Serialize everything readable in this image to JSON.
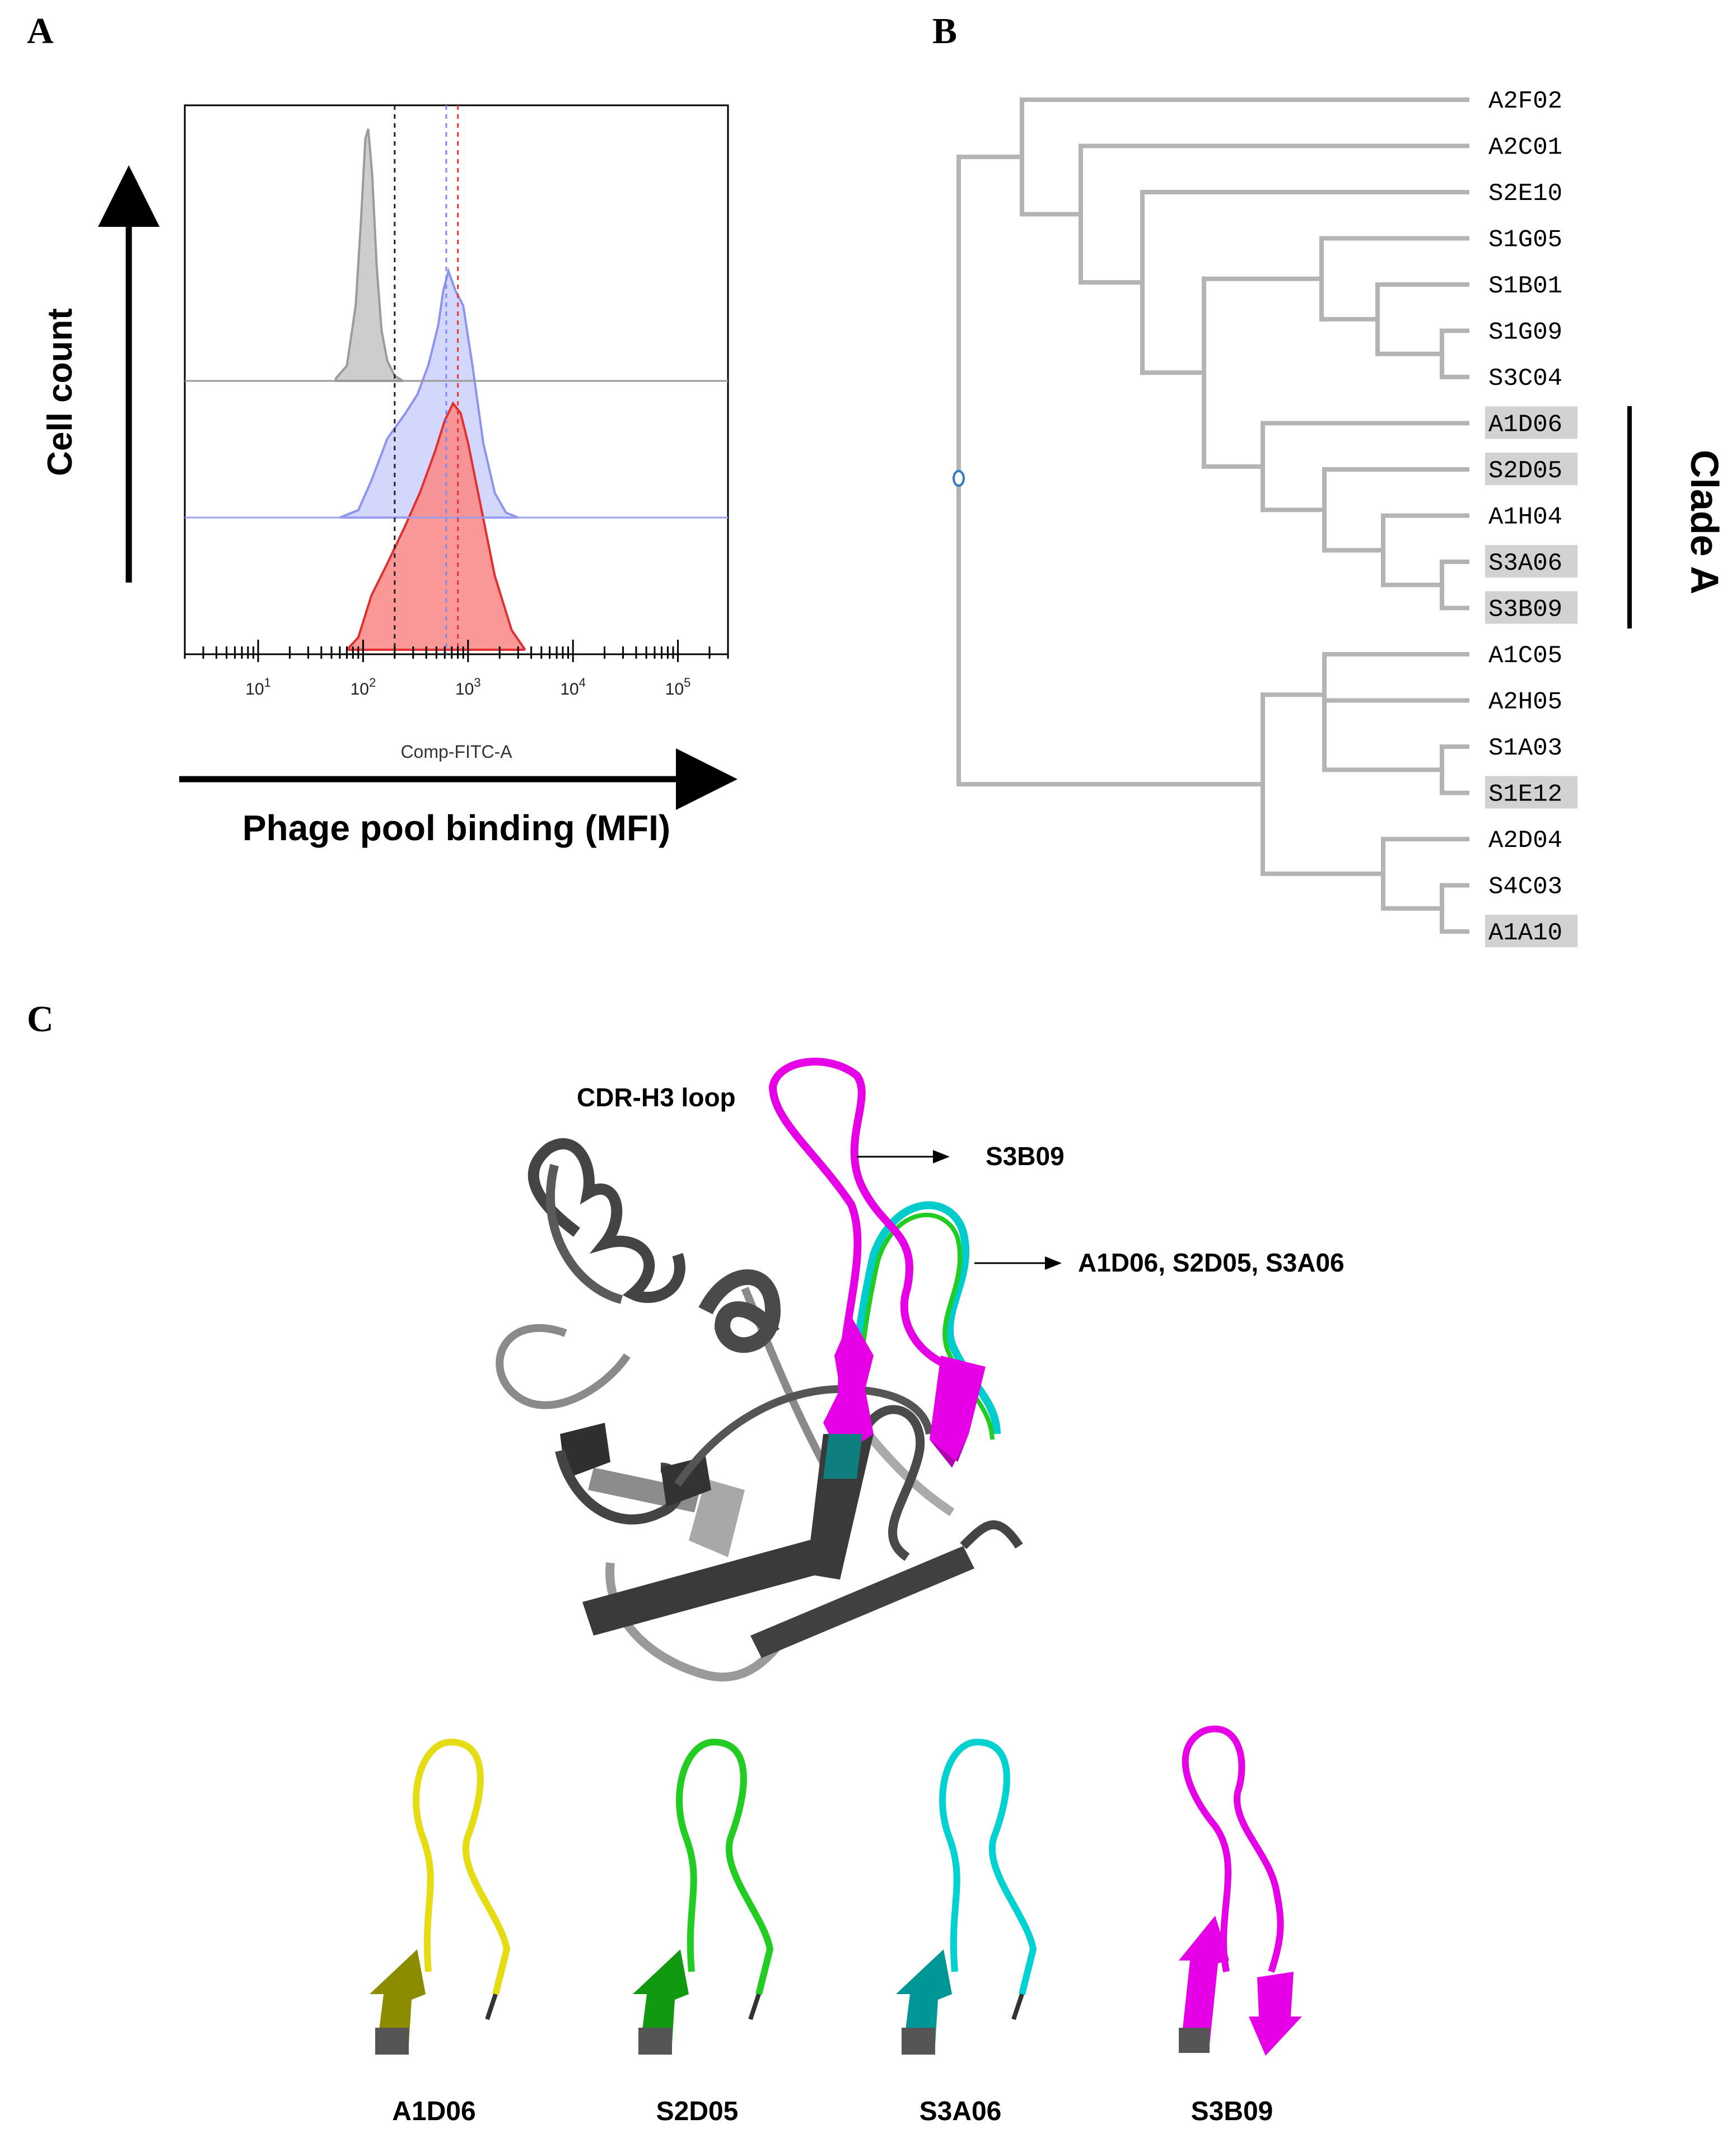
{
  "panels": {
    "a": "A",
    "b": "B",
    "c": "C"
  },
  "histogram": {
    "y_arrow_label": "Cell count",
    "x_arrow_label": "Phage pool binding (MFI)",
    "x_axis_title": "Comp-FITC-A",
    "x_ticks": [
      {
        "base": "10",
        "exp": "1",
        "value": 10
      },
      {
        "base": "10",
        "exp": "2",
        "value": 100
      },
      {
        "base": "10",
        "exp": "3",
        "value": 1000
      },
      {
        "base": "10",
        "exp": "4",
        "value": 10000
      },
      {
        "base": "10",
        "exp": "5",
        "value": 100000
      }
    ],
    "x_scale": "log",
    "x_range": [
      2,
      300000
    ],
    "gates": [
      {
        "value": 200,
        "color": "#222222"
      },
      {
        "value": 620,
        "color": "#7a8cf0"
      },
      {
        "value": 800,
        "color": "#ee3333"
      }
    ],
    "series": [
      {
        "color": "#9b9b9b",
        "fill": "#c8c8c8",
        "points": [
          [
            55,
            0.01
          ],
          [
            70,
            0.06
          ],
          [
            85,
            0.3
          ],
          [
            95,
            0.62
          ],
          [
            105,
            0.96
          ],
          [
            112,
            1.0
          ],
          [
            122,
            0.82
          ],
          [
            135,
            0.45
          ],
          [
            150,
            0.2
          ],
          [
            170,
            0.08
          ],
          [
            200,
            0.02
          ],
          [
            240,
            0.0
          ]
        ]
      },
      {
        "color": "#8d94f0",
        "fill": "#c9cdfb",
        "points": [
          [
            60,
            0.0
          ],
          [
            90,
            0.03
          ],
          [
            120,
            0.15
          ],
          [
            170,
            0.32
          ],
          [
            250,
            0.42
          ],
          [
            330,
            0.5
          ],
          [
            420,
            0.62
          ],
          [
            520,
            0.78
          ],
          [
            580,
            0.92
          ],
          [
            650,
            1.0
          ],
          [
            760,
            0.92
          ],
          [
            900,
            0.86
          ],
          [
            1100,
            0.62
          ],
          [
            1400,
            0.3
          ],
          [
            1800,
            0.1
          ],
          [
            2300,
            0.02
          ],
          [
            3000,
            0.0
          ]
        ]
      },
      {
        "color": "#e03030",
        "fill": "#fa8c8c",
        "points": [
          [
            70,
            0.0
          ],
          [
            90,
            0.05
          ],
          [
            120,
            0.22
          ],
          [
            170,
            0.35
          ],
          [
            250,
            0.5
          ],
          [
            350,
            0.64
          ],
          [
            480,
            0.8
          ],
          [
            600,
            0.93
          ],
          [
            720,
            1.0
          ],
          [
            850,
            0.96
          ],
          [
            1000,
            0.84
          ],
          [
            1300,
            0.6
          ],
          [
            1800,
            0.3
          ],
          [
            2600,
            0.08
          ],
          [
            3500,
            0.0
          ]
        ]
      }
    ]
  },
  "tree": {
    "leaves": [
      {
        "label": "A2F02",
        "highlighted": false
      },
      {
        "label": "A2C01",
        "highlighted": false
      },
      {
        "label": "S2E10",
        "highlighted": false
      },
      {
        "label": "S1G05",
        "highlighted": false
      },
      {
        "label": "S1B01",
        "highlighted": false
      },
      {
        "label": "S1G09",
        "highlighted": false
      },
      {
        "label": "S3C04",
        "highlighted": false
      },
      {
        "label": "A1D06",
        "highlighted": true
      },
      {
        "label": "S2D05",
        "highlighted": true
      },
      {
        "label": "A1H04",
        "highlighted": false
      },
      {
        "label": "S3A06",
        "highlighted": true
      },
      {
        "label": "S3B09",
        "highlighted": true
      },
      {
        "label": "A1C05",
        "highlighted": false
      },
      {
        "label": "A2H05",
        "highlighted": false
      },
      {
        "label": "S1A03",
        "highlighted": false
      },
      {
        "label": "S1E12",
        "highlighted": true
      },
      {
        "label": "A2D04",
        "highlighted": false
      },
      {
        "label": "S4C03",
        "highlighted": false
      },
      {
        "label": "A1A10",
        "highlighted": true
      }
    ],
    "clade_label": "Clade A",
    "branch_color": "#b4b4b4",
    "highlight_color": "#d2d2d2"
  },
  "structure": {
    "loop_label": "CDR-H3 loop",
    "callout_1": "S3B09",
    "callout_2": "A1D06, S2D05, S3A06",
    "colors": {
      "magenta": "#e600e6",
      "cyan": "#00cccc",
      "green": "#22cc22",
      "yellow": "#e6dc14",
      "dark": "#3c3c3c"
    },
    "loops": [
      {
        "label": "A1D06",
        "color": "#e6dc14",
        "dark": "#8c8c00"
      },
      {
        "label": "S2D05",
        "color": "#22cc22",
        "dark": "#119911"
      },
      {
        "label": "S3A06",
        "color": "#00d2d2",
        "dark": "#009696"
      },
      {
        "label": "S3B09",
        "color": "#e600e6",
        "dark": "#e600e6"
      }
    ]
  }
}
